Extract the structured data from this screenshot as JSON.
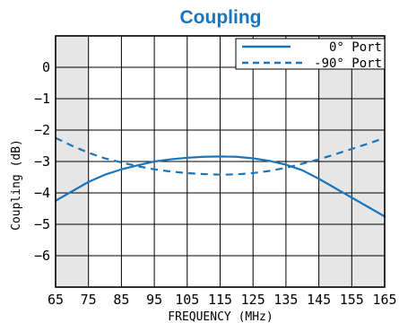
{
  "chart_data": {
    "type": "line",
    "title": "Coupling",
    "xlabel": "FREQUENCY (MHz)",
    "ylabel": "Coupling (dB)",
    "xlim": [
      65,
      165
    ],
    "ylim": [
      -7,
      1
    ],
    "xticks": [
      65,
      75,
      85,
      95,
      105,
      115,
      125,
      135,
      145,
      155,
      165
    ],
    "yticks": [
      0,
      -1,
      -2,
      -3,
      -4,
      -5,
      -6
    ],
    "shaded_ranges": [
      [
        65,
        75
      ],
      [
        145,
        165
      ]
    ],
    "grid": true,
    "legend_position": "top-right",
    "colors": {
      "series": "#1a75bc",
      "shade": "#e6e6e6",
      "title": "#1a75bc"
    },
    "series": [
      {
        "name": "0° Port",
        "style": "solid",
        "x": [
          65,
          70,
          75,
          80,
          85,
          90,
          95,
          100,
          105,
          110,
          115,
          120,
          125,
          130,
          135,
          140,
          145,
          150,
          155,
          160,
          165
        ],
        "y": [
          -4.25,
          -3.95,
          -3.65,
          -3.42,
          -3.25,
          -3.12,
          -3.0,
          -2.93,
          -2.88,
          -2.85,
          -2.84,
          -2.85,
          -2.9,
          -2.98,
          -3.1,
          -3.28,
          -3.55,
          -3.85,
          -4.15,
          -4.45,
          -4.75
        ]
      },
      {
        "name": "-90° Port",
        "style": "dashed",
        "x": [
          65,
          70,
          75,
          80,
          85,
          90,
          95,
          100,
          105,
          110,
          115,
          120,
          125,
          130,
          135,
          140,
          145,
          150,
          155,
          160,
          165
        ],
        "y": [
          -2.25,
          -2.5,
          -2.72,
          -2.9,
          -3.03,
          -3.15,
          -3.25,
          -3.32,
          -3.37,
          -3.4,
          -3.42,
          -3.41,
          -3.37,
          -3.3,
          -3.2,
          -3.07,
          -2.93,
          -2.77,
          -2.6,
          -2.43,
          -2.25
        ]
      }
    ]
  }
}
